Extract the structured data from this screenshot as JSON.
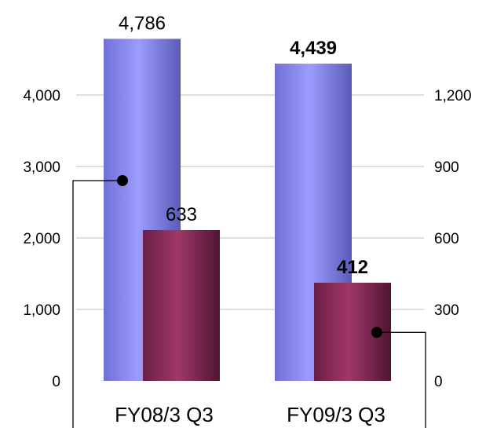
{
  "chart_data": {
    "type": "bar",
    "categories": [
      "FY08/3 Q3",
      "FY09/3 Q3"
    ],
    "series": [
      {
        "axis": "left",
        "values": [
          4786,
          4439
        ],
        "labels": [
          "4,786",
          "4,439"
        ],
        "label_bold": [
          false,
          true
        ],
        "color": "#8f8ff5"
      },
      {
        "axis": "right",
        "values": [
          633,
          412
        ],
        "labels": [
          "633",
          "412"
        ],
        "label_bold": [
          false,
          true
        ],
        "color": "#93305f"
      }
    ],
    "left_axis": {
      "ylim": [
        0,
        5000
      ],
      "ticks": [
        0,
        1000,
        2000,
        3000,
        4000
      ],
      "tick_labels": [
        "0",
        "1,000",
        "2,000",
        "3,000",
        "4,000"
      ]
    },
    "right_axis": {
      "ylim": [
        0,
        1500
      ],
      "ticks": [
        0,
        300,
        600,
        900,
        1200
      ],
      "tick_labels": [
        "0",
        "300",
        "600",
        "900",
        "1,200"
      ]
    },
    "grid": true,
    "legend": "none"
  }
}
